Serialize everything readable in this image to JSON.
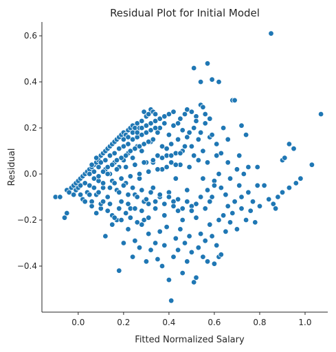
{
  "chart_data": {
    "type": "scatter",
    "title": "Residual Plot for Initial Model",
    "xlabel": "Fitted Normalized Salary",
    "ylabel": "Residual",
    "xlim": [
      -0.16,
      1.1
    ],
    "ylim": [
      -0.6,
      0.66
    ],
    "xticks": [
      0.0,
      0.2,
      0.4,
      0.6,
      0.8,
      1.0
    ],
    "yticks": [
      -0.4,
      -0.2,
      0.0,
      0.2,
      0.4,
      0.6
    ],
    "xtick_labels": [
      "0.0",
      "0.2",
      "0.4",
      "0.6",
      "0.8",
      "1.0"
    ],
    "ytick_labels": [
      "−0.4",
      "−0.2",
      "0.0",
      "0.2",
      "0.4",
      "0.6"
    ],
    "grid": false,
    "marker_color": "#1f77b4",
    "points": [
      [
        -0.1,
        -0.1
      ],
      [
        -0.08,
        -0.1
      ],
      [
        -0.06,
        -0.19
      ],
      [
        -0.05,
        -0.17
      ],
      [
        -0.05,
        -0.07
      ],
      [
        -0.04,
        -0.08
      ],
      [
        -0.03,
        -0.06
      ],
      [
        -0.02,
        -0.05
      ],
      [
        -0.02,
        -0.09
      ],
      [
        -0.01,
        -0.04
      ],
      [
        -0.01,
        -0.07
      ],
      [
        0.0,
        -0.03
      ],
      [
        0.0,
        -0.06
      ],
      [
        0.01,
        -0.02
      ],
      [
        0.01,
        -0.05
      ],
      [
        0.02,
        -0.01
      ],
      [
        0.02,
        -0.11
      ],
      [
        0.03,
        0.0
      ],
      [
        0.03,
        -0.04
      ],
      [
        0.04,
        0.01
      ],
      [
        0.04,
        -0.08
      ],
      [
        0.05,
        0.02
      ],
      [
        0.05,
        -0.05
      ],
      [
        0.06,
        0.03
      ],
      [
        0.06,
        -0.12
      ],
      [
        0.07,
        0.04
      ],
      [
        0.07,
        -0.02
      ],
      [
        0.08,
        0.05
      ],
      [
        0.08,
        -0.09
      ],
      [
        0.09,
        0.06
      ],
      [
        0.09,
        -0.03
      ],
      [
        0.1,
        0.08
      ],
      [
        0.1,
        -0.15
      ],
      [
        0.11,
        0.09
      ],
      [
        0.11,
        -0.06
      ],
      [
        0.12,
        0.1
      ],
      [
        0.12,
        0.02
      ],
      [
        0.13,
        0.11
      ],
      [
        0.13,
        -0.1
      ],
      [
        0.14,
        0.12
      ],
      [
        0.14,
        0.0
      ],
      [
        0.15,
        0.13
      ],
      [
        0.15,
        -0.18
      ],
      [
        0.16,
        0.14
      ],
      [
        0.16,
        0.05
      ],
      [
        0.17,
        0.15
      ],
      [
        0.17,
        -0.07
      ],
      [
        0.18,
        0.16
      ],
      [
        0.18,
        0.03
      ],
      [
        0.19,
        0.17
      ],
      [
        0.19,
        -0.12
      ],
      [
        0.2,
        0.18
      ],
      [
        0.2,
        0.06
      ],
      [
        0.21,
        0.17
      ],
      [
        0.21,
        -0.04
      ],
      [
        0.22,
        0.19
      ],
      [
        0.22,
        0.09
      ],
      [
        0.23,
        0.2
      ],
      [
        0.23,
        -0.15
      ],
      [
        0.24,
        0.21
      ],
      [
        0.24,
        0.07
      ],
      [
        0.25,
        0.2
      ],
      [
        0.25,
        -0.09
      ],
      [
        0.26,
        0.22
      ],
      [
        0.26,
        0.12
      ],
      [
        0.27,
        0.2
      ],
      [
        0.27,
        -0.02
      ],
      [
        0.28,
        0.23
      ],
      [
        0.28,
        0.1
      ],
      [
        0.29,
        0.27
      ],
      [
        0.29,
        -0.2
      ],
      [
        0.3,
        0.25
      ],
      [
        0.3,
        0.05
      ],
      [
        0.31,
        0.26
      ],
      [
        0.31,
        -0.13
      ],
      [
        0.32,
        0.28
      ],
      [
        0.32,
        0.14
      ],
      [
        0.33,
        0.27
      ],
      [
        0.33,
        -0.06
      ],
      [
        0.34,
        0.26
      ],
      [
        0.35,
        0.18
      ],
      [
        0.36,
        0.2
      ],
      [
        0.37,
        0.12
      ],
      [
        0.38,
        0.22
      ],
      [
        0.39,
        0.08
      ],
      [
        0.4,
        0.17
      ],
      [
        0.41,
        0.05
      ],
      [
        0.42,
        0.21
      ],
      [
        0.43,
        -0.02
      ],
      [
        0.44,
        0.15
      ],
      [
        0.45,
        0.24
      ],
      [
        0.46,
        0.1
      ],
      [
        0.47,
        0.26
      ],
      [
        0.48,
        0.28
      ],
      [
        0.49,
        0.03
      ],
      [
        0.5,
        0.12
      ],
      [
        0.51,
        0.2
      ],
      [
        0.52,
        0.25
      ],
      [
        0.53,
        0.06
      ],
      [
        0.54,
        0.3
      ],
      [
        0.55,
        0.29
      ],
      [
        0.56,
        0.22
      ],
      [
        0.57,
        0.48
      ],
      [
        0.58,
        0.16
      ],
      [
        0.59,
        0.41
      ],
      [
        0.61,
        0.13
      ],
      [
        0.62,
        0.4
      ],
      [
        0.63,
        0.09
      ],
      [
        0.64,
        0.2
      ],
      [
        0.66,
        0.15
      ],
      [
        0.68,
        0.32
      ],
      [
        0.69,
        0.32
      ],
      [
        0.71,
        0.08
      ],
      [
        0.72,
        0.21
      ],
      [
        0.74,
        0.17
      ],
      [
        0.75,
        0.03
      ],
      [
        0.79,
        -0.05
      ],
      [
        0.85,
        0.61
      ],
      [
        0.9,
        0.06
      ],
      [
        0.91,
        0.07
      ],
      [
        0.93,
        0.13
      ],
      [
        0.95,
        0.11
      ],
      [
        0.98,
        -0.02
      ],
      [
        1.03,
        0.04
      ],
      [
        1.07,
        0.26
      ],
      [
        0.51,
        0.46
      ],
      [
        0.54,
        0.4
      ],
      [
        0.1,
        -0.13
      ],
      [
        0.12,
        -0.27
      ],
      [
        0.15,
        -0.22
      ],
      [
        0.17,
        -0.2
      ],
      [
        0.18,
        -0.42
      ],
      [
        0.2,
        -0.3
      ],
      [
        0.22,
        -0.24
      ],
      [
        0.24,
        -0.36
      ],
      [
        0.25,
        -0.29
      ],
      [
        0.27,
        -0.32
      ],
      [
        0.28,
        -0.22
      ],
      [
        0.3,
        -0.38
      ],
      [
        0.31,
        -0.26
      ],
      [
        0.32,
        -0.33
      ],
      [
        0.34,
        -0.3
      ],
      [
        0.35,
        -0.37
      ],
      [
        0.36,
        -0.25
      ],
      [
        0.37,
        -0.4
      ],
      [
        0.38,
        -0.31
      ],
      [
        0.39,
        -0.23
      ],
      [
        0.4,
        -0.46
      ],
      [
        0.41,
        -0.55
      ],
      [
        0.42,
        -0.36
      ],
      [
        0.43,
        -0.28
      ],
      [
        0.44,
        -0.33
      ],
      [
        0.45,
        -0.24
      ],
      [
        0.46,
        -0.43
      ],
      [
        0.47,
        -0.3
      ],
      [
        0.48,
        -0.38
      ],
      [
        0.49,
        -0.27
      ],
      [
        0.5,
        -0.34
      ],
      [
        0.51,
        -0.47
      ],
      [
        0.52,
        -0.45
      ],
      [
        0.53,
        -0.32
      ],
      [
        0.54,
        -0.26
      ],
      [
        0.55,
        -0.36
      ],
      [
        0.56,
        -0.29
      ],
      [
        0.57,
        -0.38
      ],
      [
        0.58,
        -0.22
      ],
      [
        0.59,
        -0.27
      ],
      [
        0.6,
        -0.39
      ],
      [
        0.61,
        -0.31
      ],
      [
        0.62,
        -0.36
      ],
      [
        0.63,
        -0.35
      ],
      [
        0.64,
        -0.18
      ],
      [
        0.65,
        -0.25
      ],
      [
        0.66,
        -0.14
      ],
      [
        0.67,
        -0.21
      ],
      [
        0.68,
        -0.17
      ],
      [
        0.7,
        -0.24
      ],
      [
        0.72,
        -0.15
      ],
      [
        0.74,
        -0.2
      ],
      [
        0.76,
        -0.16
      ],
      [
        0.78,
        -0.21
      ],
      [
        0.8,
        -0.14
      ],
      [
        0.86,
        -0.13
      ],
      [
        0.88,
        -0.1
      ],
      [
        0.9,
        -0.08
      ],
      [
        0.93,
        -0.06
      ],
      [
        0.96,
        -0.04
      ],
      [
        0.55,
        -0.02
      ],
      [
        0.57,
        -0.07
      ],
      [
        0.59,
        -0.1
      ],
      [
        0.6,
        -0.03
      ],
      [
        0.62,
        0.0
      ],
      [
        0.63,
        -0.06
      ],
      [
        0.65,
        -0.09
      ],
      [
        0.66,
        0.05
      ],
      [
        0.67,
        -0.02
      ],
      [
        0.69,
        -0.12
      ],
      [
        0.7,
        0.02
      ],
      [
        0.71,
        -0.05
      ],
      [
        0.72,
        -0.1
      ],
      [
        0.73,
        0.0
      ],
      [
        0.75,
        -0.08
      ],
      [
        0.77,
        -0.12
      ],
      [
        0.79,
        0.03
      ],
      [
        0.82,
        -0.05
      ],
      [
        0.84,
        -0.11
      ],
      [
        0.87,
        -0.15
      ],
      [
        0.33,
        0.05
      ],
      [
        0.34,
        -0.15
      ],
      [
        0.35,
        0.08
      ],
      [
        0.36,
        -0.1
      ],
      [
        0.37,
        0.02
      ],
      [
        0.38,
        -0.18
      ],
      [
        0.39,
        0.11
      ],
      [
        0.4,
        -0.08
      ],
      [
        0.41,
        0.13
      ],
      [
        0.42,
        -0.12
      ],
      [
        0.43,
        0.09
      ],
      [
        0.44,
        -0.16
      ],
      [
        0.45,
        0.04
      ],
      [
        0.46,
        -0.2
      ],
      [
        0.47,
        0.12
      ],
      [
        0.48,
        -0.07
      ],
      [
        0.49,
        0.18
      ],
      [
        0.5,
        -0.14
      ],
      [
        0.51,
        0.08
      ],
      [
        0.52,
        -0.19
      ],
      [
        0.53,
        0.15
      ],
      [
        0.54,
        -0.1
      ],
      [
        0.55,
        0.1
      ],
      [
        0.56,
        -0.15
      ],
      [
        0.57,
        0.05
      ],
      [
        0.58,
        -0.12
      ],
      [
        0.59,
        0.17
      ],
      [
        0.6,
        -0.05
      ],
      [
        0.61,
        0.08
      ],
      [
        0.62,
        -0.2
      ],
      [
        0.01,
        -0.09
      ],
      [
        0.03,
        -0.12
      ],
      [
        0.05,
        -0.09
      ],
      [
        0.06,
        -0.14
      ],
      [
        0.08,
        -0.17
      ],
      [
        0.09,
        -0.08
      ],
      [
        0.11,
        -0.12
      ],
      [
        0.13,
        -0.16
      ],
      [
        0.14,
        -0.13
      ],
      [
        0.16,
        -0.19
      ],
      [
        0.18,
        -0.15
      ],
      [
        0.19,
        -0.2
      ],
      [
        0.21,
        -0.17
      ],
      [
        0.22,
        -0.13
      ],
      [
        0.23,
        -0.19
      ],
      [
        0.25,
        -0.15
      ],
      [
        0.26,
        -0.21
      ],
      [
        0.28,
        -0.16
      ],
      [
        0.29,
        -0.12
      ],
      [
        0.31,
        -0.19
      ],
      [
        0.05,
        0.0
      ],
      [
        0.06,
        0.04
      ],
      [
        0.07,
        0.01
      ],
      [
        0.08,
        0.07
      ],
      [
        0.09,
        0.03
      ],
      [
        0.1,
        0.05
      ],
      [
        0.11,
        0.01
      ],
      [
        0.12,
        0.06
      ],
      [
        0.13,
        0.03
      ],
      [
        0.14,
        0.08
      ],
      [
        0.15,
        0.04
      ],
      [
        0.16,
        0.09
      ],
      [
        0.17,
        0.06
      ],
      [
        0.18,
        0.11
      ],
      [
        0.19,
        0.07
      ],
      [
        0.2,
        0.12
      ],
      [
        0.21,
        0.08
      ],
      [
        0.22,
        0.13
      ],
      [
        0.23,
        0.1
      ],
      [
        0.24,
        0.15
      ],
      [
        0.25,
        0.11
      ],
      [
        0.26,
        0.16
      ],
      [
        0.27,
        0.12
      ],
      [
        0.28,
        0.17
      ],
      [
        0.29,
        0.13
      ],
      [
        0.3,
        0.18
      ],
      [
        0.31,
        0.14
      ],
      [
        0.32,
        0.19
      ],
      [
        0.33,
        0.15
      ],
      [
        0.34,
        0.2
      ],
      [
        0.07,
        -0.06
      ],
      [
        0.09,
        -0.01
      ],
      [
        0.11,
        -0.04
      ],
      [
        0.13,
        0.0
      ],
      [
        0.15,
        -0.03
      ],
      [
        0.17,
        0.02
      ],
      [
        0.19,
        -0.02
      ],
      [
        0.21,
        0.03
      ],
      [
        0.23,
        -0.01
      ],
      [
        0.25,
        0.04
      ],
      [
        0.27,
        0.0
      ],
      [
        0.29,
        0.05
      ],
      [
        0.31,
        0.01
      ],
      [
        0.33,
        0.06
      ],
      [
        0.35,
        0.02
      ],
      [
        0.37,
        0.07
      ],
      [
        0.39,
        0.03
      ],
      [
        0.41,
        0.08
      ],
      [
        0.43,
        0.04
      ],
      [
        0.45,
        0.09
      ],
      [
        0.14,
        -0.06
      ],
      [
        0.16,
        -0.04
      ],
      [
        0.18,
        -0.08
      ],
      [
        0.2,
        -0.05
      ],
      [
        0.22,
        -0.09
      ],
      [
        0.24,
        -0.06
      ],
      [
        0.26,
        -0.1
      ],
      [
        0.28,
        -0.07
      ],
      [
        0.3,
        -0.11
      ],
      [
        0.32,
        -0.08
      ],
      [
        0.34,
        -0.12
      ],
      [
        0.36,
        -0.09
      ],
      [
        0.38,
        -0.13
      ],
      [
        0.4,
        -0.1
      ],
      [
        0.42,
        -0.14
      ],
      [
        0.44,
        -0.11
      ],
      [
        0.46,
        -0.15
      ],
      [
        0.48,
        -0.12
      ],
      [
        0.5,
        -0.16
      ],
      [
        0.52,
        -0.13
      ],
      [
        0.2,
        0.15
      ],
      [
        0.22,
        0.16
      ],
      [
        0.24,
        0.18
      ],
      [
        0.26,
        0.18
      ],
      [
        0.28,
        0.2
      ],
      [
        0.3,
        0.21
      ],
      [
        0.32,
        0.22
      ],
      [
        0.34,
        0.23
      ],
      [
        0.36,
        0.24
      ],
      [
        0.38,
        0.25
      ],
      [
        0.4,
        0.26
      ],
      [
        0.42,
        0.27
      ],
      [
        0.44,
        0.22
      ],
      [
        0.46,
        0.19
      ],
      [
        0.48,
        0.16
      ],
      [
        0.5,
        0.27
      ],
      [
        0.52,
        0.23
      ],
      [
        0.54,
        0.18
      ],
      [
        0.56,
        0.26
      ],
      [
        0.58,
        0.24
      ]
    ]
  }
}
